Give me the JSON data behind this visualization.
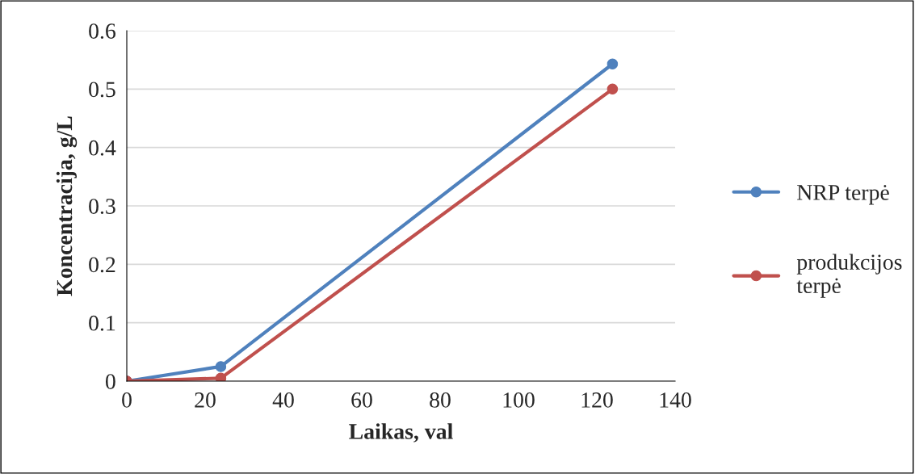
{
  "chart_data": {
    "type": "line",
    "xlabel": "Laikas, val",
    "ylabel": "Koncentracija, g/L",
    "x": [
      0,
      24,
      124
    ],
    "series": [
      {
        "name": "NRP terpė",
        "color": "#4f81bd",
        "values": [
          0,
          0.025,
          0.543
        ]
      },
      {
        "name": "produkcijos\nterpė",
        "color": "#c0504d",
        "values": [
          0,
          0.005,
          0.5
        ]
      }
    ],
    "xlim": [
      0,
      140
    ],
    "xticks": [
      0,
      20,
      40,
      60,
      80,
      100,
      120,
      140
    ],
    "ylim": [
      0,
      0.6
    ],
    "yticks": [
      0,
      0.1,
      0.2,
      0.3,
      0.4,
      0.5,
      0.6
    ],
    "grid": "y",
    "legend": "right",
    "marker": "circle",
    "line_style": "solid"
  }
}
